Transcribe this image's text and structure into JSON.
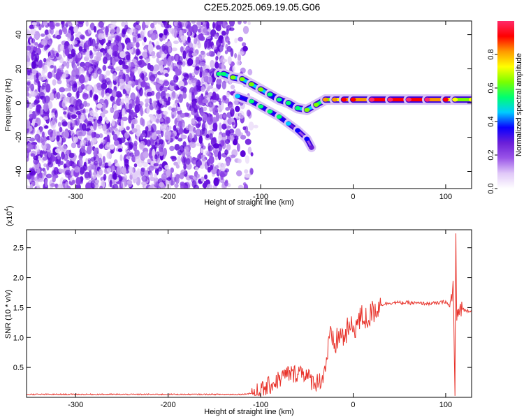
{
  "title": "C2E5.2025.069.19.05.G06",
  "chart_data": [
    {
      "type": "heatmap",
      "xlabel": "Height of straight line (km)",
      "ylabel": "Frequency (Hz)",
      "xlim": [
        -353,
        128
      ],
      "ylim": [
        -50,
        48
      ],
      "xticks": [
        -300,
        -200,
        -100,
        0,
        100
      ],
      "yticks": [
        -40,
        -20,
        0,
        20,
        40
      ],
      "colorbar": {
        "label": "Normalized spectral amplitude",
        "range": [
          0.0,
          1.0
        ],
        "ticks": [
          0.0,
          0.2,
          0.4,
          0.6,
          0.8
        ],
        "colors": [
          "#ffffff",
          "#e0c8f8",
          "#9a55e8",
          "#6a1fd8",
          "#0a00ff",
          "#00ccff",
          "#00ff70",
          "#7aff00",
          "#ffff00",
          "#ff9900",
          "#ff0000",
          "#ff2a6a"
        ]
      },
      "noise_region": {
        "x": [
          -353,
          -125
        ],
        "y": [
          -50,
          48
        ],
        "typical_amplitude": 0.1
      },
      "signal_track": [
        {
          "x": -145,
          "y": 17,
          "amp": 0.35
        },
        {
          "x": -140,
          "y": 17,
          "amp": 0.4
        },
        {
          "x": -130,
          "y": 15,
          "amp": 0.45
        },
        {
          "x": -120,
          "y": 14,
          "amp": 0.45
        },
        {
          "x": -110,
          "y": 11,
          "amp": 0.45
        },
        {
          "x": -100,
          "y": 8,
          "amp": 0.45
        },
        {
          "x": -90,
          "y": 5,
          "amp": 0.4
        },
        {
          "x": -80,
          "y": 2,
          "amp": 0.4
        },
        {
          "x": -70,
          "y": 0,
          "amp": 0.4
        },
        {
          "x": -60,
          "y": -3,
          "amp": 0.4
        },
        {
          "x": -50,
          "y": -4,
          "amp": 0.45
        },
        {
          "x": -40,
          "y": -1,
          "amp": 0.5
        },
        {
          "x": -30,
          "y": 2,
          "amp": 0.65
        },
        {
          "x": -20,
          "y": 2,
          "amp": 0.7
        },
        {
          "x": -10,
          "y": 2,
          "amp": 0.75
        },
        {
          "x": 0,
          "y": 2,
          "amp": 0.8
        },
        {
          "x": 20,
          "y": 2,
          "amp": 0.85
        },
        {
          "x": 40,
          "y": 2,
          "amp": 0.9
        },
        {
          "x": 60,
          "y": 2,
          "amp": 0.9
        },
        {
          "x": 80,
          "y": 2,
          "amp": 0.85
        },
        {
          "x": 100,
          "y": 2,
          "amp": 0.8
        },
        {
          "x": 110,
          "y": 2,
          "amp": 0.6
        },
        {
          "x": 128,
          "y": 2,
          "amp": 0.6
        }
      ],
      "lower_branch": [
        {
          "x": -125,
          "y": 4,
          "amp": 0.3
        },
        {
          "x": -110,
          "y": 1,
          "amp": 0.35
        },
        {
          "x": -100,
          "y": -2,
          "amp": 0.35
        },
        {
          "x": -90,
          "y": -5,
          "amp": 0.35
        },
        {
          "x": -80,
          "y": -8,
          "amp": 0.35
        },
        {
          "x": -70,
          "y": -12,
          "amp": 0.3
        },
        {
          "x": -60,
          "y": -16,
          "amp": 0.25
        },
        {
          "x": -50,
          "y": -21,
          "amp": 0.2
        },
        {
          "x": -45,
          "y": -26,
          "amp": 0.15
        }
      ]
    },
    {
      "type": "line",
      "xlabel": "Height of straight line (km)",
      "ylabel": "SNR (10 * v/v)",
      "y_multiplier_label": "(x10",
      "y_multiplier_exponent": "4",
      "y_multiplier_close": ")",
      "xlim": [
        -353,
        128
      ],
      "ylim": [
        0,
        2.8
      ],
      "xticks": [
        -300,
        -200,
        -100,
        0,
        100
      ],
      "yticks": [
        0.5,
        1.0,
        1.5,
        2.0,
        2.5
      ],
      "color": "#e8342c",
      "series": [
        {
          "x": [
            -353,
            -300,
            -250,
            -200,
            -150,
            -120,
            -110,
            -100,
            -95,
            -90,
            -85,
            -80,
            -75,
            -70,
            -65,
            -60,
            -55,
            -50,
            -45,
            -40,
            -35,
            -32,
            -30,
            -27,
            -25,
            -20,
            -15,
            -10,
            -5,
            0,
            5,
            10,
            15,
            20,
            25,
            30,
            40,
            50,
            60,
            70,
            80,
            90,
            100,
            105,
            108,
            110,
            111,
            112,
            114,
            118,
            120,
            128
          ],
          "y": [
            0.05,
            0.05,
            0.05,
            0.05,
            0.05,
            0.05,
            0.07,
            0.1,
            0.15,
            0.2,
            0.25,
            0.3,
            0.35,
            0.4,
            0.38,
            0.42,
            0.45,
            0.35,
            0.28,
            0.25,
            0.3,
            0.35,
            0.55,
            0.8,
            1.0,
            0.85,
            1.05,
            1.0,
            1.15,
            1.15,
            1.25,
            1.35,
            1.3,
            1.4,
            1.5,
            1.55,
            1.58,
            1.58,
            1.58,
            1.57,
            1.57,
            1.57,
            1.6,
            1.5,
            1.9,
            0.1,
            2.7,
            1.2,
            1.45,
            1.5,
            1.45,
            1.45
          ]
        }
      ]
    }
  ]
}
